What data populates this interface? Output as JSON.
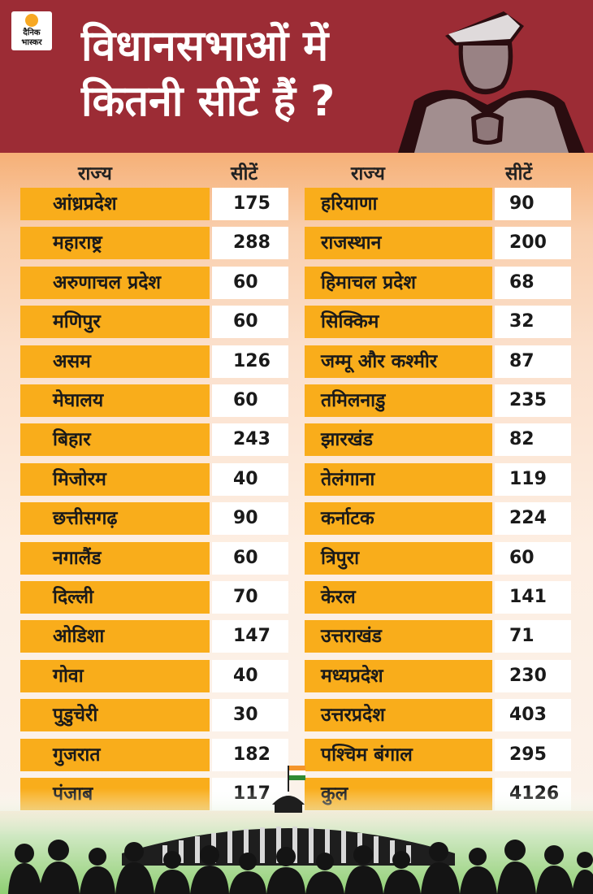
{
  "brand": {
    "line1": "दैनिक",
    "line2": "भास्कर",
    "accent": "#f7a823"
  },
  "header": {
    "title_line1": "विधानसभाओं में",
    "title_line2": "कितनी सीटें हैं ?",
    "bg_color": "#9c2c35"
  },
  "columns": {
    "state": "राज्य",
    "seats": "सीटें"
  },
  "left_rows": [
    {
      "state": "आंध्रप्रदेश",
      "seats": "175"
    },
    {
      "state": "महाराष्ट्र",
      "seats": "288"
    },
    {
      "state": "अरुणाचल प्रदेश",
      "seats": "60"
    },
    {
      "state": "मणिपुर",
      "seats": "60"
    },
    {
      "state": "असम",
      "seats": "126"
    },
    {
      "state": "मेघालय",
      "seats": "60"
    },
    {
      "state": "बिहार",
      "seats": "243"
    },
    {
      "state": "मिजोरम",
      "seats": "40"
    },
    {
      "state": "छत्तीसगढ़",
      "seats": "90"
    },
    {
      "state": "नगालैंड",
      "seats": "60"
    },
    {
      "state": "दिल्ली",
      "seats": "70"
    },
    {
      "state": "ओडिशा",
      "seats": "147"
    },
    {
      "state": "गोवा",
      "seats": "40"
    },
    {
      "state": "पुडुचेरी",
      "seats": "30"
    },
    {
      "state": "गुजरात",
      "seats": "182"
    },
    {
      "state": "पंजाब",
      "seats": "117"
    }
  ],
  "right_rows": [
    {
      "state": "हरियाणा",
      "seats": "90"
    },
    {
      "state": "राजस्थान",
      "seats": "200"
    },
    {
      "state": "हिमाचल प्रदेश",
      "seats": "68"
    },
    {
      "state": "सिक्किम",
      "seats": "32"
    },
    {
      "state": "जम्मू और कश्मीर",
      "seats": "87"
    },
    {
      "state": "तमिलनाडु",
      "seats": "235"
    },
    {
      "state": "झारखंड",
      "seats": "82"
    },
    {
      "state": "तेलंगाना",
      "seats": "119"
    },
    {
      "state": "कर्नाटक",
      "seats": "224"
    },
    {
      "state": "त्रिपुरा",
      "seats": "60"
    },
    {
      "state": "केरल",
      "seats": "141"
    },
    {
      "state": "उत्तराखंड",
      "seats": "71"
    },
    {
      "state": "मध्यप्रदेश",
      "seats": "230"
    },
    {
      "state": "उत्तरप्रदेश",
      "seats": "403"
    },
    {
      "state": "पश्चिम बंगाल",
      "seats": "295"
    },
    {
      "state": "कुल",
      "seats": "4126"
    }
  ],
  "colors": {
    "row_fill": "#f9ad1b",
    "seat_fill": "#ffffff",
    "flag_saffron": "#f4952b",
    "flag_green": "#2f8a34"
  }
}
